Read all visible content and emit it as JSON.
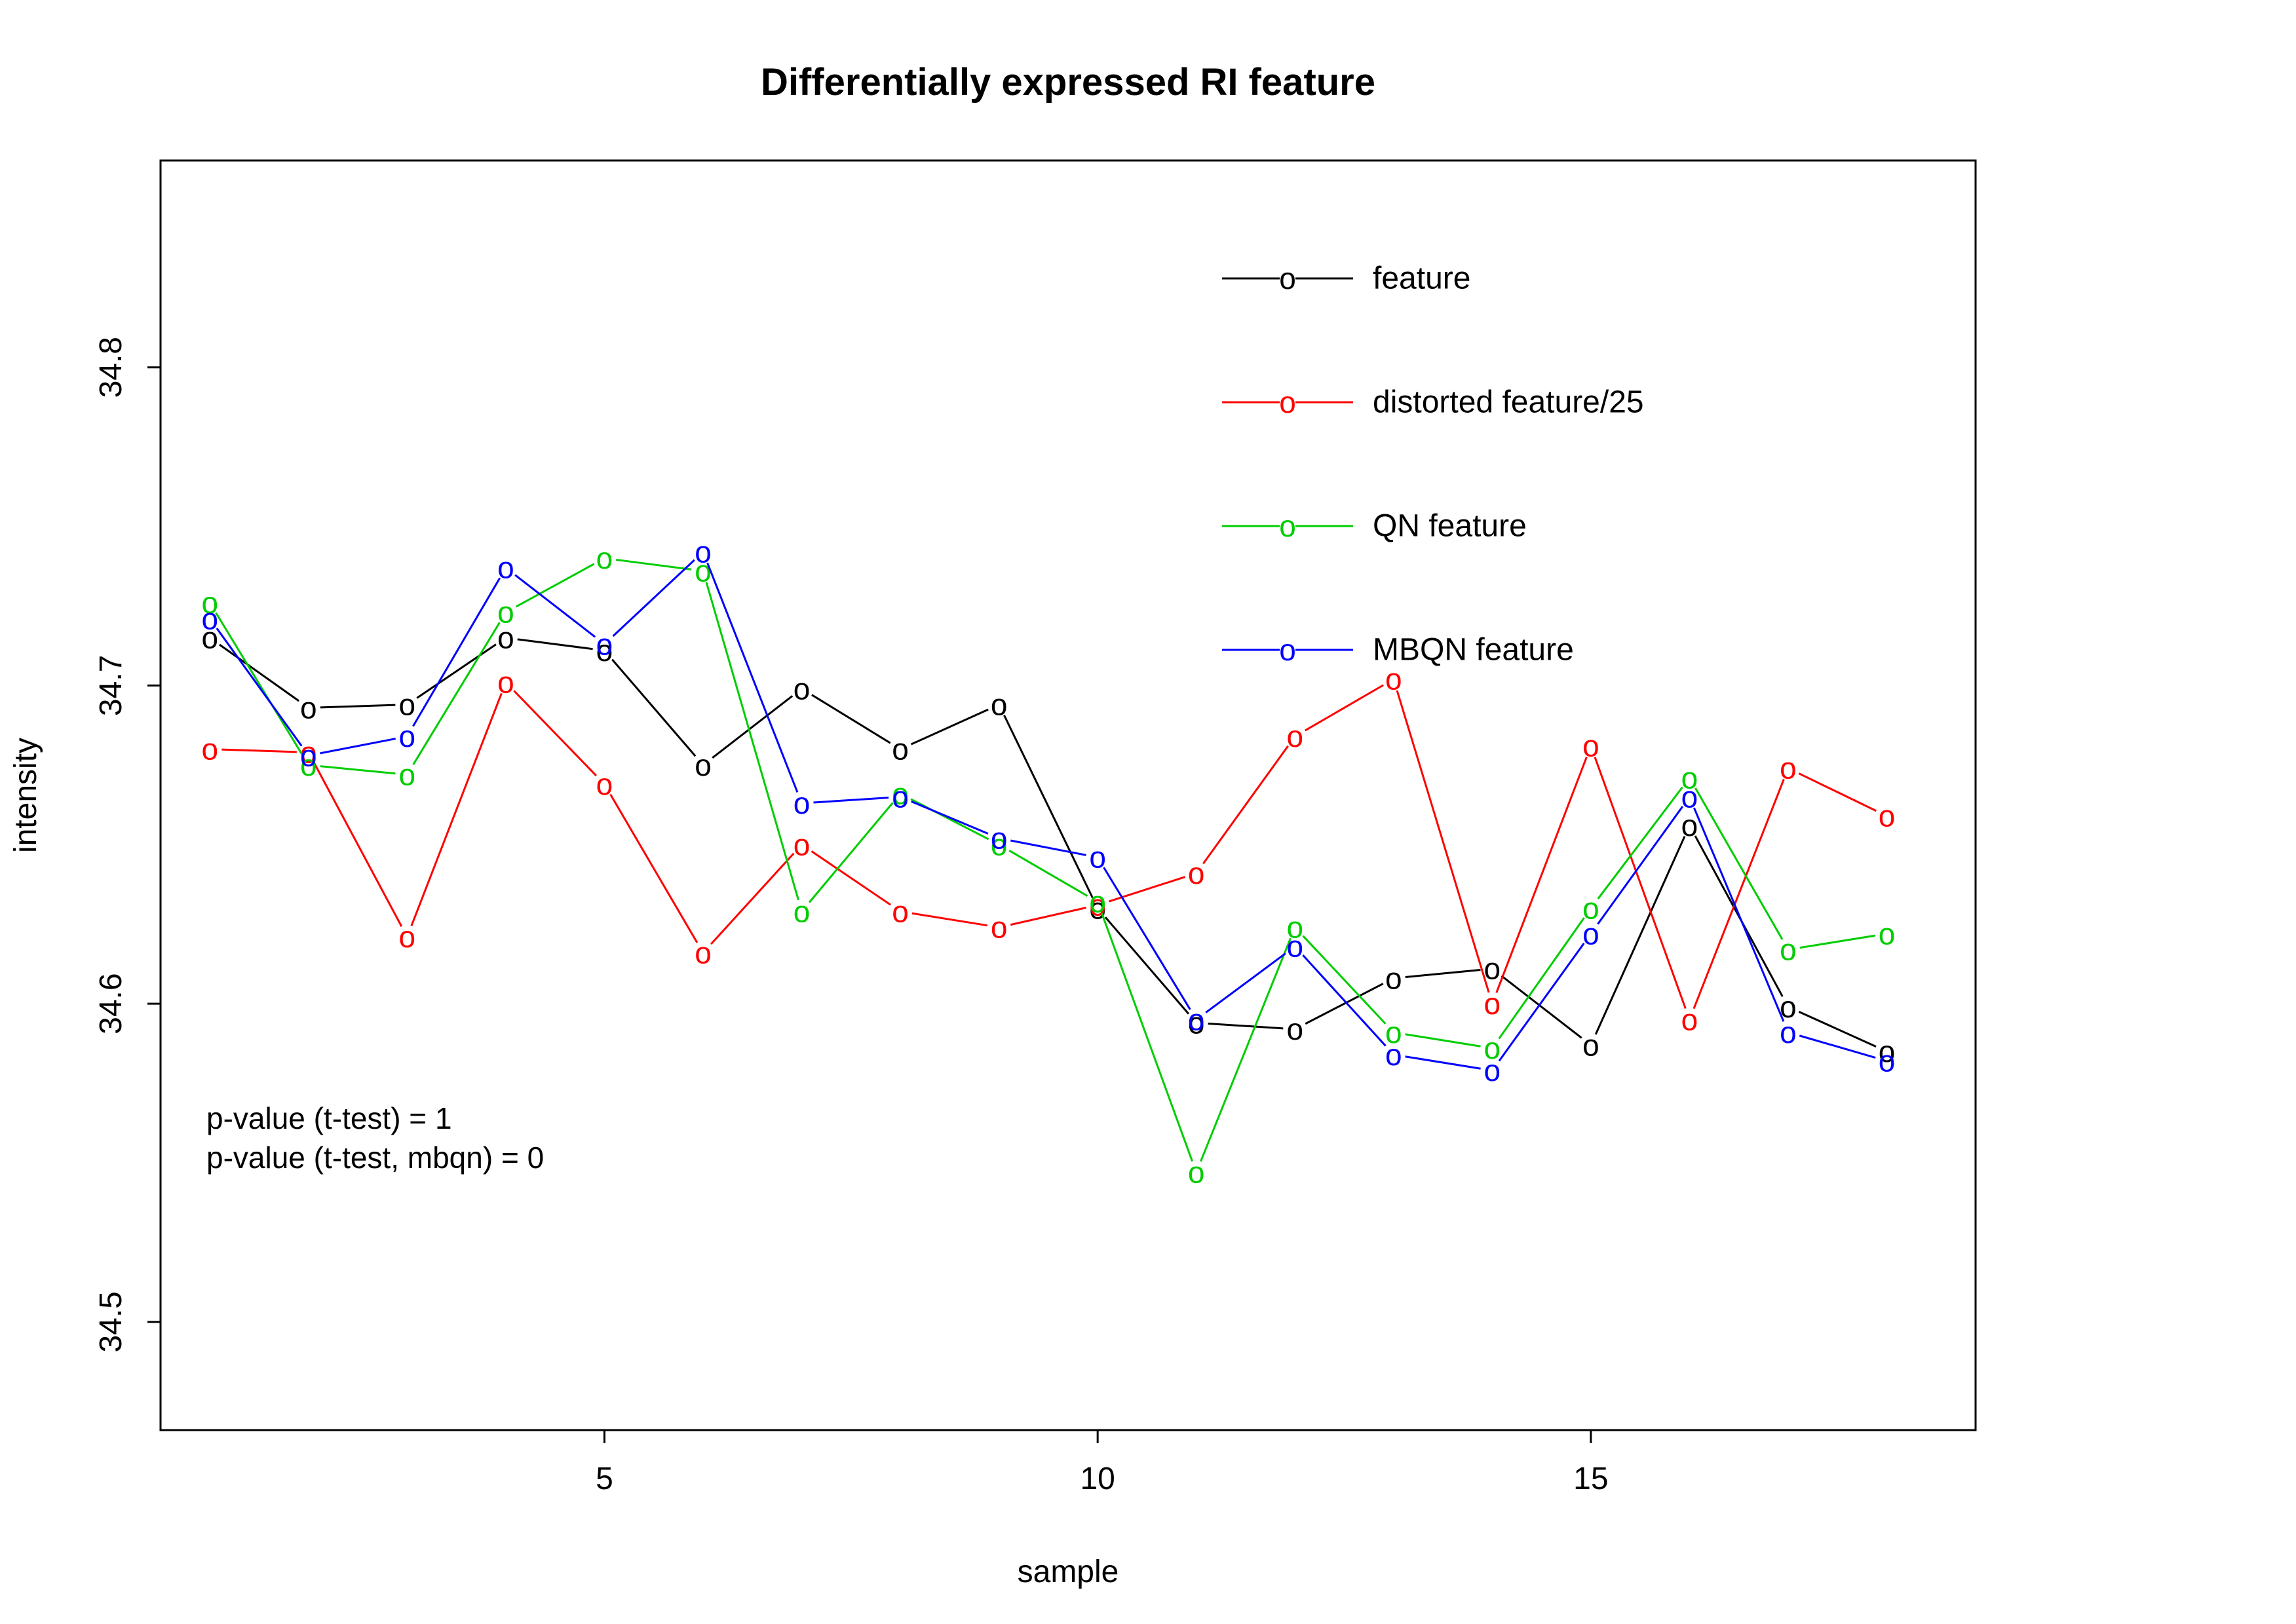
{
  "chart_data": {
    "type": "line",
    "title": "Differentially expressed RI feature",
    "xlabel": "sample",
    "ylabel": "intensity",
    "xlim": [
      0.5,
      18.9
    ],
    "ylim": [
      34.466,
      34.865
    ],
    "x_ticks": [
      5,
      10,
      15
    ],
    "x_tick_labels": [
      "5",
      "10",
      "15"
    ],
    "y_ticks": [
      34.5,
      34.6,
      34.7,
      34.8
    ],
    "y_tick_labels": [
      "34.5",
      "34.6",
      "34.7",
      "34.8"
    ],
    "grid": false,
    "legend_position": "top-right",
    "marker": "o",
    "x": [
      1,
      2,
      3,
      4,
      5,
      6,
      7,
      8,
      9,
      10,
      11,
      12,
      13,
      14,
      15,
      16,
      17,
      18
    ],
    "series": [
      {
        "name": "feature",
        "color": "#000000",
        "values": [
          34.715,
          34.693,
          34.694,
          34.715,
          34.711,
          34.675,
          34.699,
          34.68,
          34.694,
          34.63,
          34.594,
          34.592,
          34.608,
          34.611,
          34.587,
          34.656,
          34.599,
          34.585
        ]
      },
      {
        "name": "distorted feature/25",
        "color": "#ff0000",
        "values": [
          34.68,
          34.679,
          34.621,
          34.701,
          34.669,
          34.616,
          34.65,
          34.629,
          34.624,
          34.631,
          34.641,
          34.684,
          34.702,
          34.6,
          34.681,
          34.595,
          34.674,
          34.659
        ]
      },
      {
        "name": "QN feature",
        "color": "#00cd00",
        "values": [
          34.726,
          34.675,
          34.672,
          34.723,
          34.74,
          34.736,
          34.629,
          34.666,
          34.65,
          34.632,
          34.547,
          34.624,
          34.591,
          34.586,
          34.63,
          34.671,
          34.617,
          34.622
        ]
      },
      {
        "name": "MBQN feature",
        "color": "#0000ff",
        "values": [
          34.721,
          34.678,
          34.684,
          34.737,
          34.713,
          34.742,
          34.663,
          34.665,
          34.652,
          34.646,
          34.595,
          34.618,
          34.584,
          34.579,
          34.622,
          34.665,
          34.591,
          34.582
        ]
      }
    ],
    "legend": [
      {
        "label": "feature",
        "color": "#000000"
      },
      {
        "label": "distorted feature/25",
        "color": "#ff0000"
      },
      {
        "label": "QN feature",
        "color": "#00cd00"
      },
      {
        "label": " MBQN feature",
        "color": "#0000ff"
      }
    ],
    "annotations": [
      "p-value (t-test) = 1",
      "p-value (t-test, mbqn) = 0"
    ]
  }
}
